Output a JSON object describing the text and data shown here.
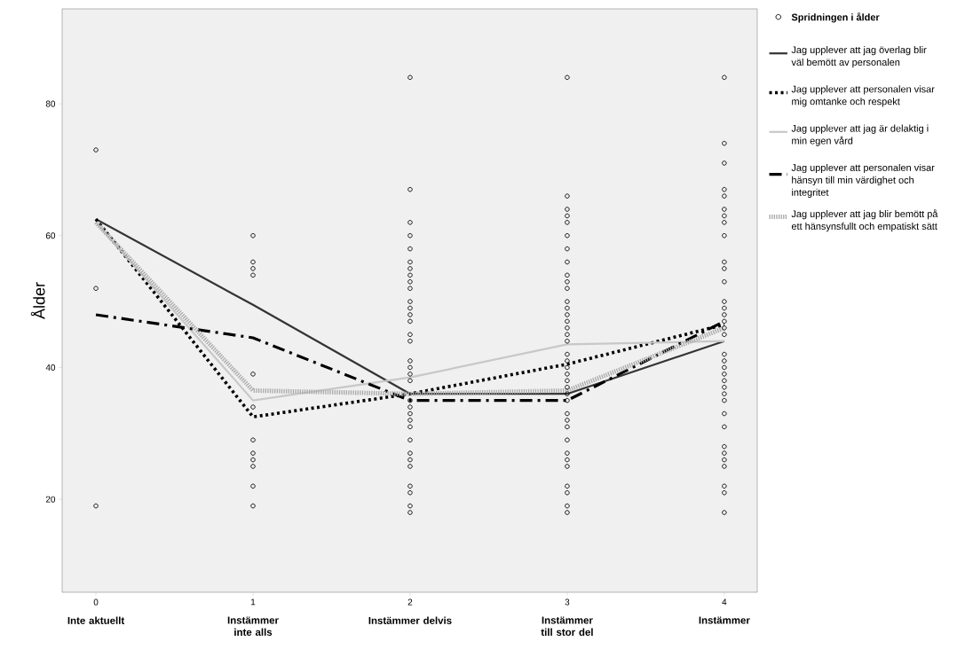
{
  "chart_data": {
    "type": "line",
    "ylabel": "Ålder",
    "xlim": [
      -0.215,
      4.21
    ],
    "ylim": [
      5.9,
      94.4
    ],
    "xticks": [
      0,
      1,
      2,
      3,
      4
    ],
    "yticks": [
      20,
      40,
      60,
      80
    ],
    "legend": "right",
    "annotations": [
      "Inte aktuellt",
      "Instämmer inte alls",
      "Instämmer delvis",
      "Instämmer till stor del",
      "Instämmer"
    ],
    "series": [
      {
        "name": "Spridningen i ålder",
        "type": "scatter",
        "marker": "circle",
        "color": "#000000",
        "x": [
          0,
          0,
          0,
          1,
          1,
          1,
          1,
          1,
          1,
          1,
          1,
          1,
          1,
          1,
          1,
          2,
          2,
          2,
          2,
          2,
          2,
          2,
          2,
          2,
          2,
          2,
          2,
          2,
          2,
          2,
          2,
          2,
          2,
          2,
          2,
          2,
          2,
          2,
          2,
          2,
          2,
          2,
          2,
          2,
          2,
          2,
          2,
          2,
          3,
          3,
          3,
          3,
          3,
          3,
          3,
          3,
          3,
          3,
          3,
          3,
          3,
          3,
          3,
          3,
          3,
          3,
          3,
          3,
          3,
          3,
          3,
          3,
          3,
          3,
          3,
          3,
          3,
          3,
          3,
          3,
          3,
          3,
          3,
          3,
          3,
          4,
          4,
          4,
          4,
          4,
          4,
          4,
          4,
          4,
          4,
          4,
          4,
          4,
          4,
          4,
          4,
          4,
          4,
          4,
          4,
          4,
          4,
          4,
          4,
          4,
          4,
          4,
          4,
          4,
          4,
          4,
          4,
          4,
          4,
          4
        ],
        "values": [
          73,
          52,
          19,
          60,
          56,
          55,
          54,
          39,
          34,
          29,
          27,
          26,
          25,
          22,
          19,
          84,
          67,
          62,
          60,
          58,
          56,
          55,
          54,
          53,
          52,
          50,
          49,
          48,
          47,
          45,
          44,
          41,
          40,
          39,
          38,
          35,
          34,
          33,
          32,
          31,
          29,
          27,
          26,
          25,
          22,
          21,
          19,
          18,
          84,
          66,
          64,
          63,
          62,
          60,
          58,
          56,
          54,
          53,
          52,
          50,
          49,
          48,
          47,
          46,
          45,
          44,
          42,
          41,
          40,
          39,
          38,
          37,
          36,
          35,
          33,
          32,
          31,
          29,
          27,
          26,
          25,
          22,
          21,
          19,
          18,
          84,
          74,
          71,
          67,
          66,
          64,
          63,
          62,
          60,
          56,
          55,
          53,
          50,
          49,
          48,
          47,
          46,
          45,
          42,
          41,
          40,
          39,
          38,
          37,
          36,
          35,
          33,
          31,
          28,
          27,
          26,
          25,
          22,
          21,
          18
        ]
      },
      {
        "name": "Jag upplever att jag överlag blir väl bemött av personalen",
        "color": "#333333",
        "line_style": "solid",
        "x": [
          0,
          1,
          2,
          3,
          4
        ],
        "values": [
          62.5,
          49.5,
          36,
          36,
          44
        ]
      },
      {
        "name": "Jag upplever att personalen visar mig omtanke och respekt",
        "color": "#000000",
        "line_style": "dotted",
        "x": [
          0,
          1,
          2,
          3,
          4
        ],
        "values": [
          62.5,
          32.5,
          36,
          40.5,
          46.5
        ]
      },
      {
        "name": "Jag upplever att jag är delaktig i min egen vård",
        "color": "#c8c8c8",
        "line_style": "solid",
        "x": [
          0,
          1,
          2,
          3,
          4
        ],
        "values": [
          62,
          35,
          38.5,
          43.5,
          44
        ]
      },
      {
        "name": "Jag upplever att personalen visar hänsyn till min värdighet och integritet",
        "color": "#000000",
        "line_style": "dashdot",
        "x": [
          0,
          1,
          2,
          3,
          4
        ],
        "values": [
          48,
          44.5,
          35,
          35,
          47
        ]
      },
      {
        "name": "Jag upplever att jag blir bemött på ett hänsynsfullt och empatiskt sätt",
        "color": "#a8a8a8",
        "line_style": "dashed",
        "x": [
          0,
          1,
          2,
          3,
          4
        ],
        "values": [
          62,
          36.5,
          36,
          36.5,
          46
        ]
      }
    ]
  }
}
